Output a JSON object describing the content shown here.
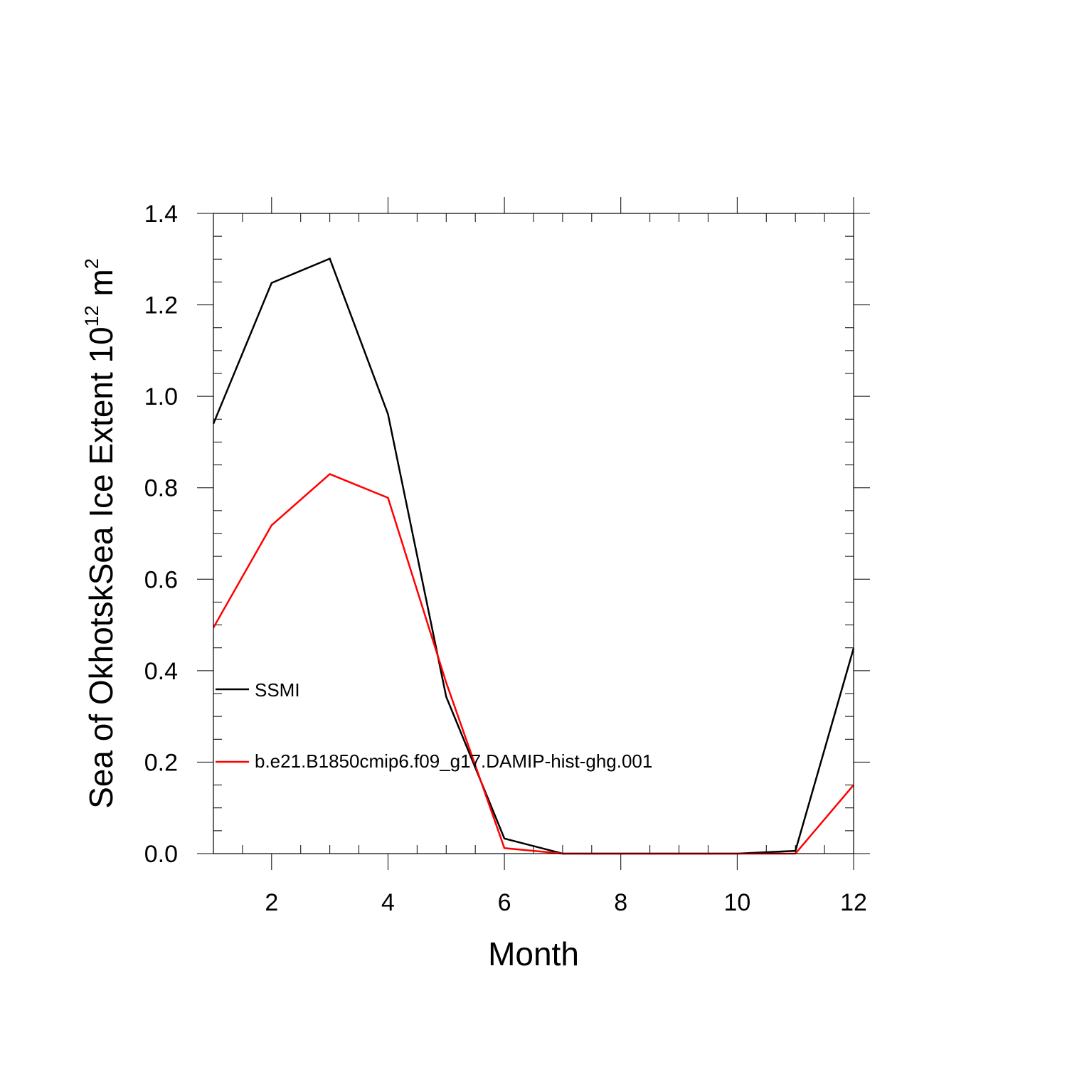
{
  "chart_data": {
    "type": "line",
    "title": "",
    "xlabel": "Month",
    "ylabel": "Sea of OkhotskSea Ice Extent 10",
    "ylabel_exponent": "12",
    "ylabel_unit": " m",
    "ylabel_unit_exponent": "2",
    "xlim": [
      1,
      12
    ],
    "ylim": [
      0.0,
      1.4
    ],
    "x": [
      1,
      2,
      3,
      4,
      5,
      6,
      7,
      8,
      9,
      10,
      11,
      12
    ],
    "x_ticks": [
      2,
      4,
      6,
      8,
      10,
      12
    ],
    "x_tick_labels": [
      "2",
      "4",
      "6",
      "8",
      "10",
      "12"
    ],
    "y_ticks": [
      0.0,
      0.2,
      0.4,
      0.6,
      0.8,
      1.0,
      1.2,
      1.4
    ],
    "y_tick_labels": [
      "0.0",
      "0.2",
      "0.4",
      "0.6",
      "0.8",
      "1.0",
      "1.2",
      "1.4"
    ],
    "legend_position": "left",
    "series": [
      {
        "name": "SSMI",
        "color": "#000000",
        "values": [
          0.94,
          1.248,
          1.301,
          0.961,
          0.343,
          0.033,
          0.0,
          0.0,
          0.0,
          0.0,
          0.006,
          0.449
        ]
      },
      {
        "name": "b.e21.B1850cmip6.f09_g17.DAMIP-hist-ghg.001",
        "color": "#ff0000",
        "values": [
          0.494,
          0.718,
          0.83,
          0.778,
          0.374,
          0.012,
          0.0,
          0.0,
          0.0,
          0.0,
          0.0,
          0.15
        ]
      }
    ]
  }
}
